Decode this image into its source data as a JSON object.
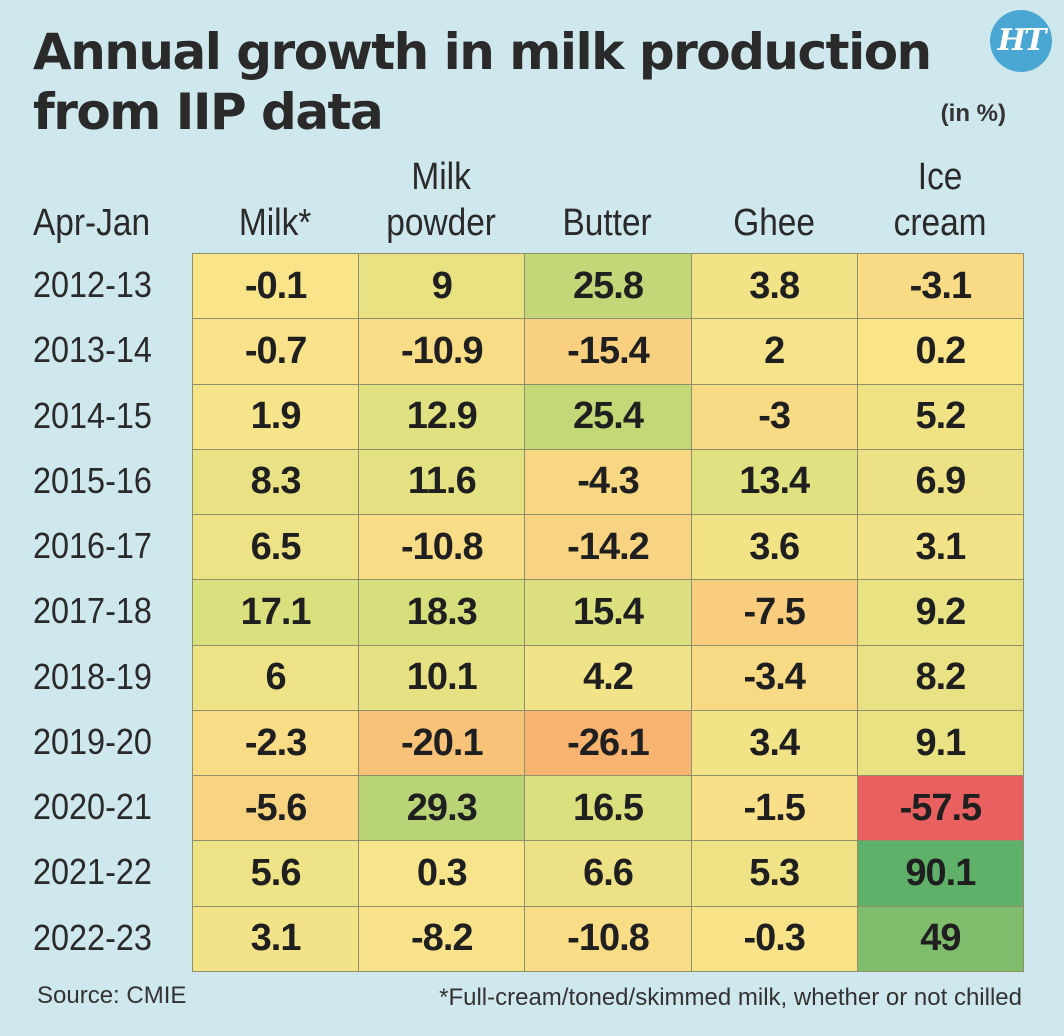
{
  "title": "Annual growth in milk production\nfrom IIP data",
  "unit_note": "(in %)",
  "logo_text": "HT",
  "row_header": "Apr-Jan",
  "source": "Source: CMIE",
  "footnote": "*Full-cream/toned/skimmed milk, whether or not chilled",
  "chart_data": {
    "type": "heatmap",
    "title": "Annual growth in milk production from IIP data",
    "unit": "(in %)",
    "row_header": "Apr-Jan",
    "columns": [
      "Milk*",
      "Milk\npowder",
      "Butter",
      "Ghee",
      "Ice\ncream"
    ],
    "rows": [
      "2012-13",
      "2013-14",
      "2014-15",
      "2015-16",
      "2016-17",
      "2017-18",
      "2018-19",
      "2019-20",
      "2020-21",
      "2021-22",
      "2022-23"
    ],
    "values": [
      [
        "-0.1",
        "9",
        "25.8",
        "3.8",
        "-3.1"
      ],
      [
        "-0.7",
        "-10.9",
        "-15.4",
        "2",
        "0.2"
      ],
      [
        "1.9",
        "12.9",
        "25.4",
        "-3",
        "5.2"
      ],
      [
        "8.3",
        "11.6",
        "-4.3",
        "13.4",
        "6.9"
      ],
      [
        "6.5",
        "-10.8",
        "-14.2",
        "3.6",
        "3.1"
      ],
      [
        "17.1",
        "18.3",
        "15.4",
        "-7.5",
        "9.2"
      ],
      [
        "6",
        "10.1",
        "4.2",
        "-3.4",
        "8.2"
      ],
      [
        "-2.3",
        "-20.1",
        "-26.1",
        "3.4",
        "9.1"
      ],
      [
        "-5.6",
        "29.3",
        "16.5",
        "-1.5",
        "-57.5"
      ],
      [
        "5.6",
        "0.3",
        "6.6",
        "5.3",
        "90.1"
      ],
      [
        "3.1",
        "-8.2",
        "-10.8",
        "-0.3",
        "49"
      ]
    ],
    "color_scale": {
      "low": "#e8605f",
      "mid_low": "#f7b36f",
      "mid": "#f9e48a",
      "mid_high": "#d3df7b",
      "high": "#5fb068"
    }
  }
}
